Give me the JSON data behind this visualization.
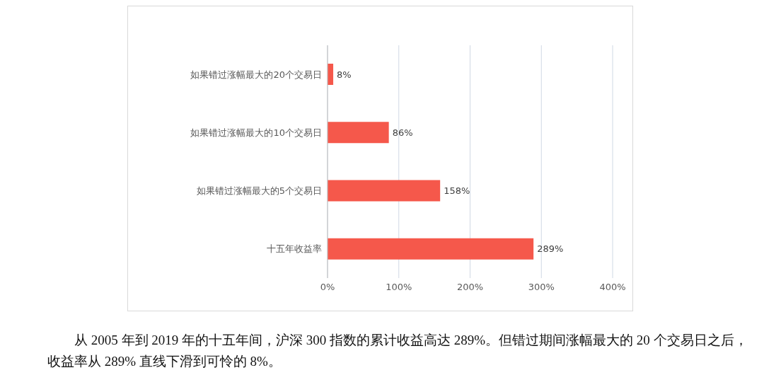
{
  "chart_data": {
    "type": "bar",
    "orientation": "horizontal",
    "categories": [
      "如果错过涨幅最大的20个交易日",
      "如果错过涨幅最大的10个交易日",
      "如果错过涨幅最大的5个交易日",
      "十五年收益率"
    ],
    "values": [
      8,
      86,
      158,
      289
    ],
    "value_labels": [
      "8%",
      "86%",
      "158%",
      "289%"
    ],
    "color": "#f5584b",
    "xlim": [
      0,
      400
    ],
    "xticks": [
      {
        "value": 0,
        "label": "0%"
      },
      {
        "value": 100,
        "label": "100%"
      },
      {
        "value": 200,
        "label": "200%"
      },
      {
        "value": 300,
        "label": "300%"
      },
      {
        "value": 400,
        "label": "400%"
      }
    ],
    "grid": "x",
    "legend": false,
    "annotations": [
      "从 2005 年到 2019 年的十五年间，沪深 300 指数的累计收益高达 289%。但错过期间涨幅最大的 20 个交易日之后，收益率从 289% 直线下滑到可怜的 8%。"
    ]
  }
}
